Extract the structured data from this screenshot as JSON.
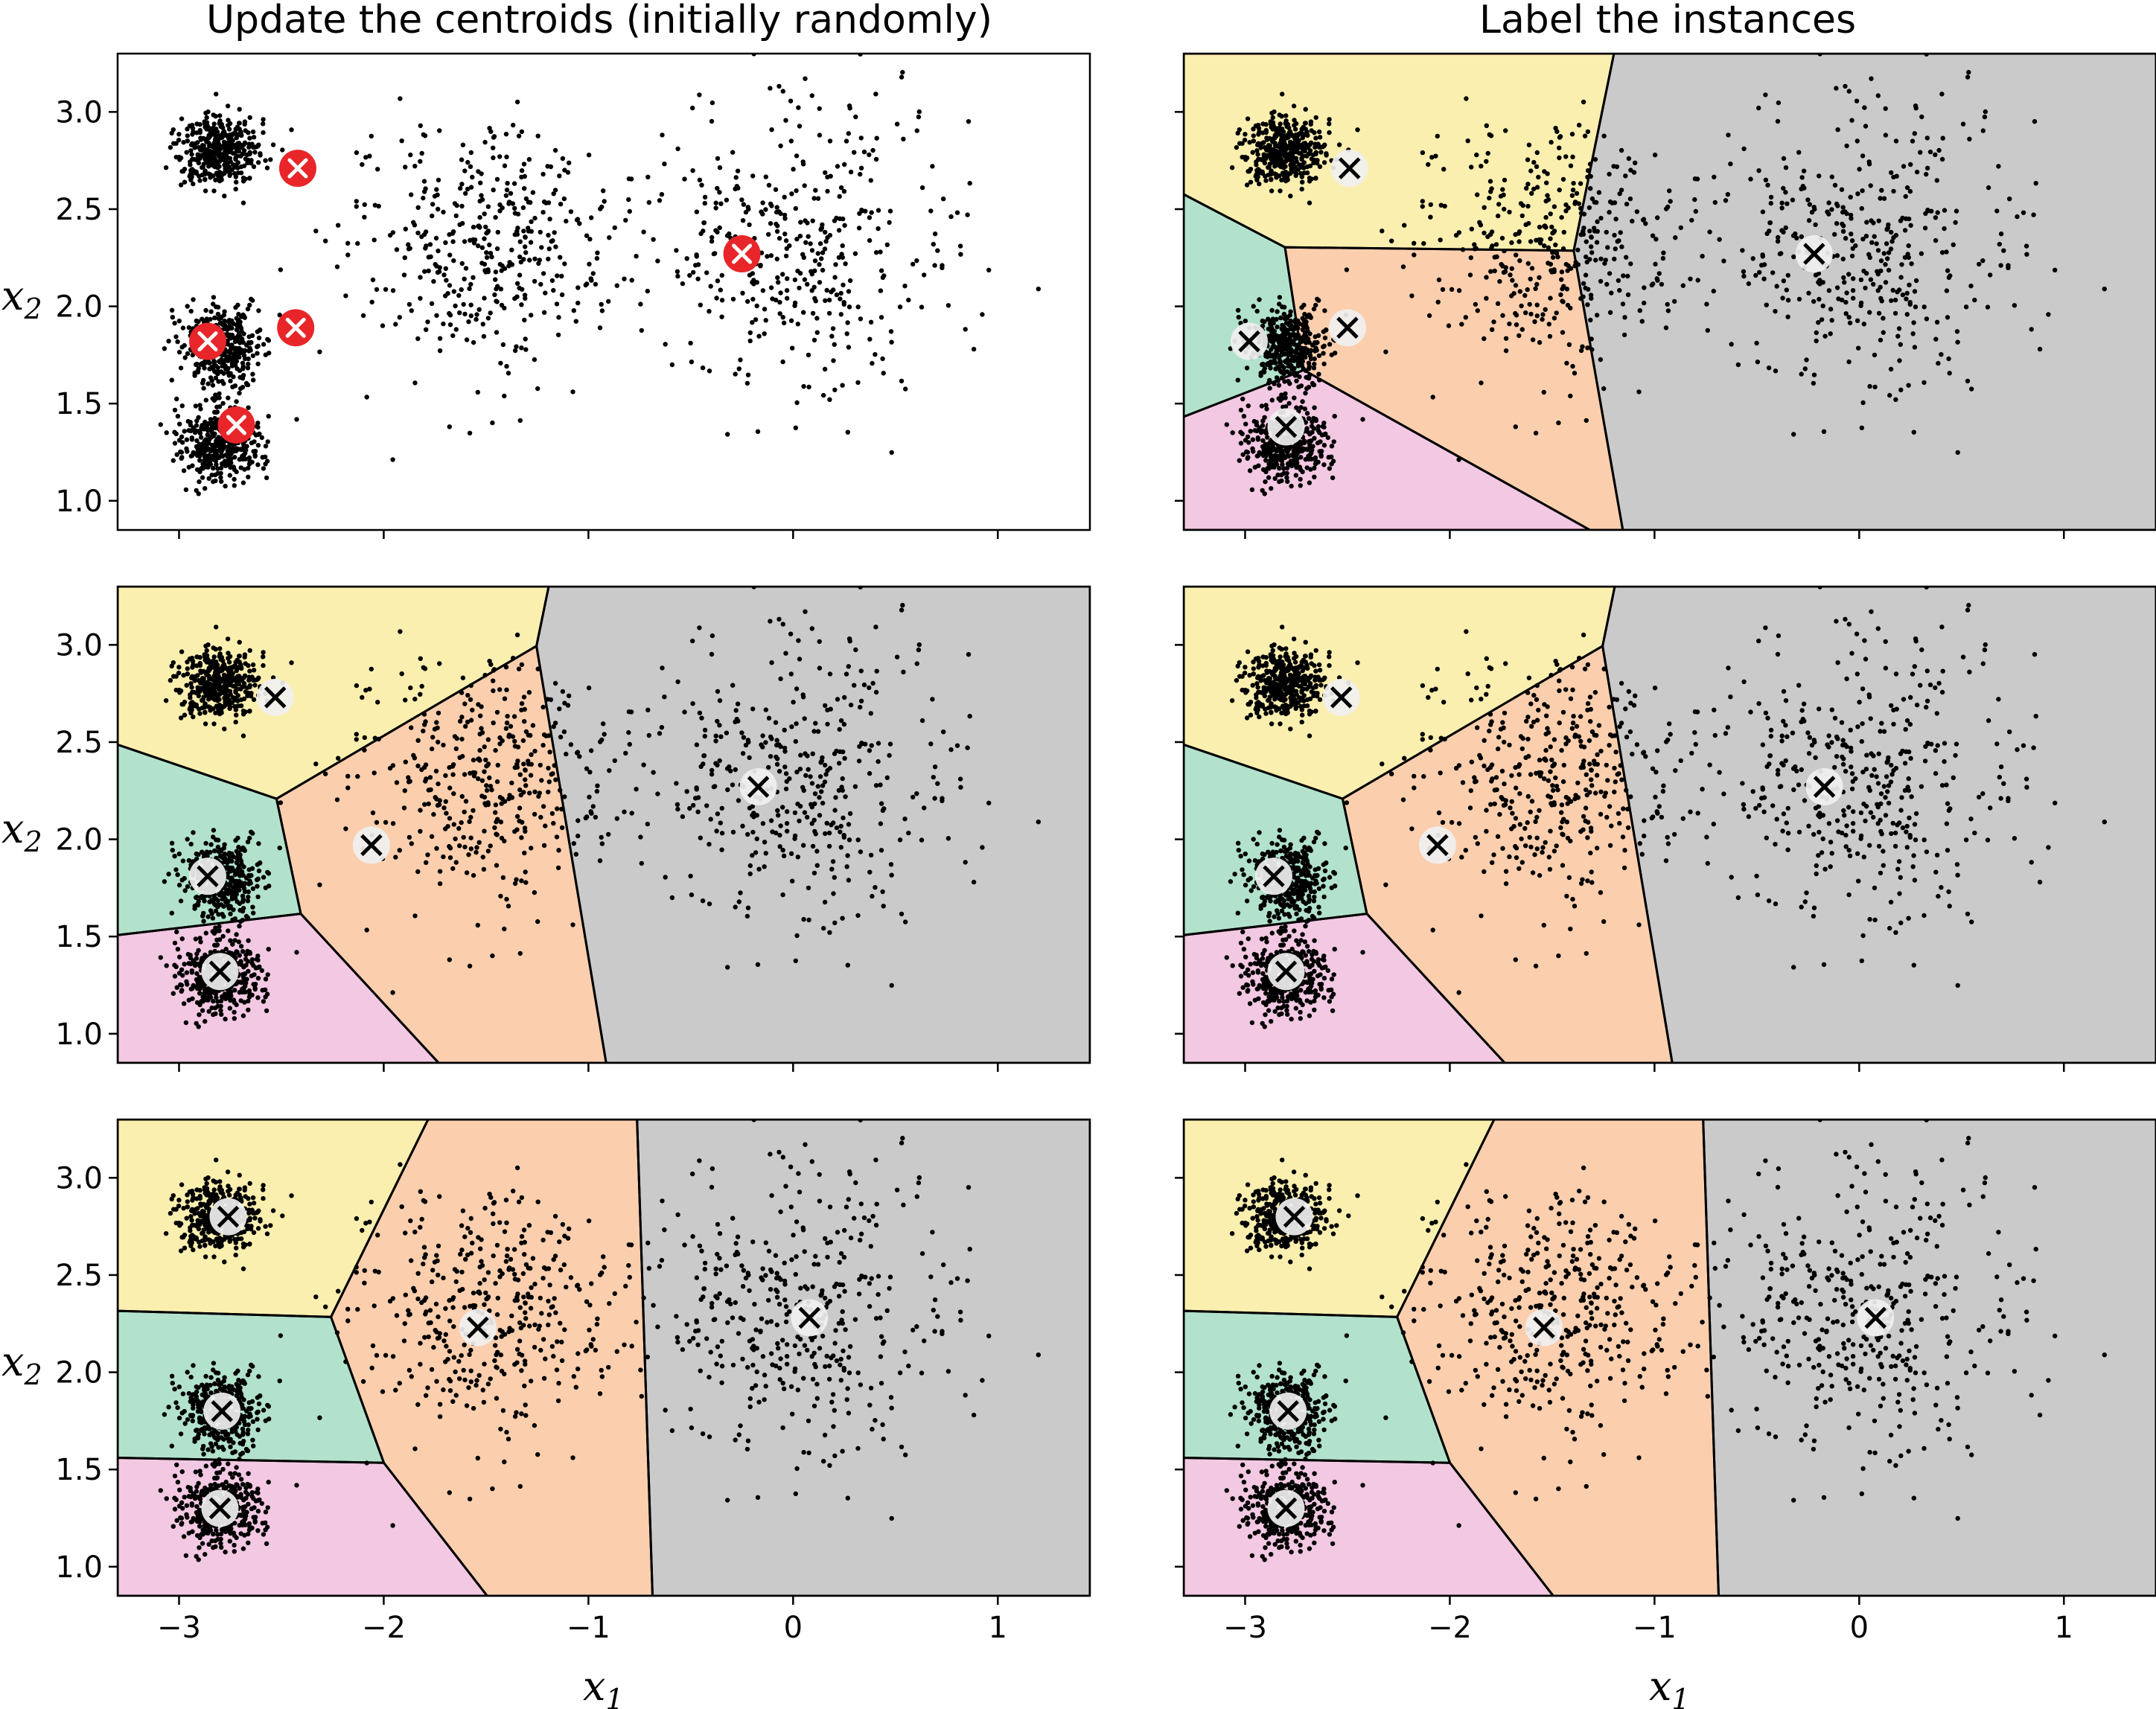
{
  "figure": {
    "column_titles": [
      "Update the centroids (initially randomly)",
      "Label the instances"
    ],
    "x_axis_label": "x1",
    "y_axis_label": "x2",
    "x_tick_labels": [
      "−3",
      "−2",
      "−1",
      "0",
      "1"
    ],
    "y_tick_labels": [
      "1.0",
      "1.5",
      "2.0",
      "2.5",
      "3.0"
    ]
  },
  "colors": {
    "cluster_yellow": "#FBEFB0",
    "cluster_green": "#B2E2CC",
    "cluster_orange": "#FBCFAE",
    "cluster_pink": "#F2C8E2",
    "cluster_gray": "#CACACA",
    "points": "#000000",
    "initial_centroid": "#E8262A",
    "centroid_marker": "#F0F0F0",
    "boundary": "#000000"
  },
  "chart_data": [
    {
      "type": "scatter",
      "title": "Update the centroids (initially randomly)",
      "xlabel": "",
      "ylabel": "x2",
      "xlim": [
        -3.3,
        1.45
      ],
      "ylim": [
        0.85,
        3.3
      ],
      "decision_regions": false,
      "centroid_style": "red",
      "centroids": [
        [
          -2.42,
          2.71
        ],
        [
          -2.43,
          1.89
        ],
        [
          -2.86,
          1.82
        ],
        [
          -2.72,
          1.39
        ],
        [
          -0.25,
          2.27
        ]
      ]
    },
    {
      "type": "scatter",
      "title": "Label the instances",
      "xlabel": "",
      "ylabel": "",
      "xlim": [
        -3.3,
        1.45
      ],
      "ylim": [
        0.85,
        3.3
      ],
      "decision_regions": true,
      "centroid_style": "white",
      "centroids": [
        [
          -2.49,
          2.71
        ],
        [
          -2.5,
          1.89
        ],
        [
          -2.98,
          1.82
        ],
        [
          -2.8,
          1.38
        ],
        [
          -0.22,
          2.27
        ]
      ]
    },
    {
      "type": "scatter",
      "title": "",
      "xlabel": "",
      "ylabel": "x2",
      "xlim": [
        -3.3,
        1.45
      ],
      "ylim": [
        0.85,
        3.3
      ],
      "decision_regions": true,
      "centroid_style": "white",
      "centroids": [
        [
          -2.53,
          2.73
        ],
        [
          -2.06,
          1.97
        ],
        [
          -2.86,
          1.81
        ],
        [
          -2.8,
          1.32
        ],
        [
          -0.17,
          2.27
        ]
      ]
    },
    {
      "type": "scatter",
      "title": "",
      "xlabel": "",
      "ylabel": "",
      "xlim": [
        -3.3,
        1.45
      ],
      "ylim": [
        0.85,
        3.3
      ],
      "decision_regions": true,
      "centroid_style": "white",
      "centroids": [
        [
          -2.53,
          2.73
        ],
        [
          -2.06,
          1.97
        ],
        [
          -2.86,
          1.81
        ],
        [
          -2.8,
          1.32
        ],
        [
          -0.17,
          2.27
        ]
      ]
    },
    {
      "type": "scatter",
      "title": "",
      "xlabel": "x1",
      "ylabel": "x2",
      "xlim": [
        -3.3,
        1.45
      ],
      "ylim": [
        0.85,
        3.3
      ],
      "decision_regions": true,
      "centroid_style": "white",
      "centroids": [
        [
          -2.76,
          2.8
        ],
        [
          -1.54,
          2.23
        ],
        [
          -2.79,
          1.8
        ],
        [
          -2.8,
          1.3
        ],
        [
          0.08,
          2.28
        ]
      ]
    },
    {
      "type": "scatter",
      "title": "",
      "xlabel": "x1",
      "ylabel": "",
      "xlim": [
        -3.3,
        1.45
      ],
      "ylim": [
        0.85,
        3.3
      ],
      "decision_regions": true,
      "centroid_style": "white",
      "centroids": [
        [
          -2.76,
          2.8
        ],
        [
          -1.54,
          2.23
        ],
        [
          -2.79,
          1.8
        ],
        [
          -2.8,
          1.3
        ],
        [
          0.08,
          2.28
        ]
      ]
    }
  ],
  "blobs": [
    {
      "center": [
        -2.8,
        2.8
      ],
      "std": 0.1,
      "n": 400
    },
    {
      "center": [
        -2.8,
        1.8
      ],
      "std": 0.1,
      "n": 400
    },
    {
      "center": [
        -2.8,
        1.3
      ],
      "std": 0.1,
      "n": 400
    },
    {
      "center": [
        -1.5,
        2.3
      ],
      "std": 0.32,
      "n": 400
    },
    {
      "center": [
        0.0,
        2.3
      ],
      "std": 0.38,
      "n": 400
    }
  ]
}
